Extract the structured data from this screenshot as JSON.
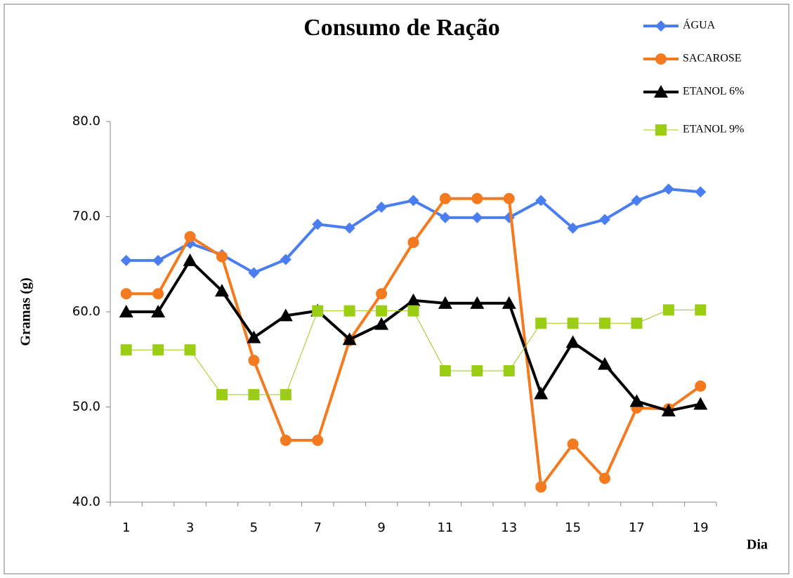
{
  "chart_data": {
    "type": "line",
    "title": "Consumo de Ração",
    "y_label": "Gramas (g)",
    "x_label": "Dia",
    "categories": [
      "1",
      null,
      "3",
      null,
      "5",
      null,
      "7",
      null,
      "9",
      null,
      "11",
      null,
      "13",
      null,
      "15",
      null,
      "17",
      null,
      "19"
    ],
    "ylim": [
      40,
      80
    ],
    "yticks": [
      {
        "value": 40,
        "label": "40.0"
      },
      {
        "value": 50,
        "label": "50.0"
      },
      {
        "value": 60,
        "label": "60.0"
      },
      {
        "value": 70,
        "label": "70.0"
      },
      {
        "value": 80,
        "label": "80.0"
      }
    ],
    "grid": false,
    "legend": "top-right",
    "series": [
      {
        "name": "ÁGUA",
        "color": "#4a7ef0",
        "marker": "diamond",
        "values": [
          65.4,
          65.4,
          67.2,
          66.0,
          64.1,
          65.5,
          69.2,
          68.8,
          71.0,
          71.7,
          69.9,
          69.9,
          69.9,
          71.7,
          68.8,
          69.7,
          71.7,
          72.9,
          72.6
        ]
      },
      {
        "name": "SACAROSE",
        "color": "#f47a20",
        "marker": "circle",
        "values": [
          61.9,
          61.9,
          67.9,
          65.8,
          54.9,
          46.5,
          46.5,
          57.0,
          61.9,
          67.3,
          71.9,
          71.9,
          71.9,
          41.6,
          46.1,
          42.5,
          49.9,
          49.8,
          52.2
        ]
      },
      {
        "name": "ETANOL 6%",
        "color": "#000000",
        "marker": "triangle",
        "values": [
          60.0,
          60.0,
          65.4,
          62.2,
          57.3,
          59.6,
          60.1,
          57.1,
          58.7,
          61.2,
          60.9,
          60.9,
          60.9,
          51.4,
          56.8,
          54.5,
          50.6,
          49.6,
          50.3
        ]
      },
      {
        "name": "ETANOL 9%",
        "color": "#9acd14",
        "marker": "square",
        "values": [
          56.0,
          56.0,
          56.0,
          51.3,
          51.3,
          51.3,
          60.1,
          60.1,
          60.1,
          60.1,
          53.8,
          53.8,
          53.8,
          58.8,
          58.8,
          58.8,
          58.8,
          60.2,
          60.2
        ]
      }
    ]
  }
}
